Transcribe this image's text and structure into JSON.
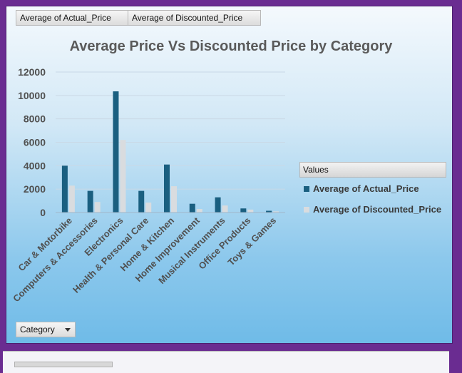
{
  "pivot_buttons": {
    "values_1": "Average  of  Actual_Price",
    "values_2": "Average  of  Discounted_Price",
    "axis_field": "Category"
  },
  "legend": {
    "header": "Values"
  },
  "colors": {
    "actual": "#1a5f80",
    "discounted": "#d9dcdf",
    "frame": "#6a2c91"
  },
  "chart_data": {
    "type": "bar",
    "title": "Average Price Vs Discounted Price by Category",
    "xlabel": "",
    "ylabel": "",
    "ylim": [
      0,
      12000
    ],
    "yticks": [
      0,
      2000,
      4000,
      6000,
      8000,
      10000,
      12000
    ],
    "yticklabels": [
      "0",
      "2000",
      "4000",
      "6000",
      "8000",
      "10000",
      "12000"
    ],
    "categories": [
      "Car & Motorbike",
      "Computers & Accessories",
      "Electronics",
      "Health & Personal Care",
      "Home & Kitchen",
      "Home Improvement",
      "Musical Instruments",
      "Office Products",
      "Toys & Games"
    ],
    "series": [
      {
        "name": "Average of Actual_Price",
        "values": [
          4000,
          1850,
          10350,
          1850,
          4100,
          750,
          1300,
          350,
          150
        ]
      },
      {
        "name": "Average of Discounted_Price",
        "values": [
          2300,
          900,
          6200,
          850,
          2250,
          300,
          600,
          250,
          100
        ]
      }
    ],
    "grid": true,
    "legend_position": "right"
  }
}
